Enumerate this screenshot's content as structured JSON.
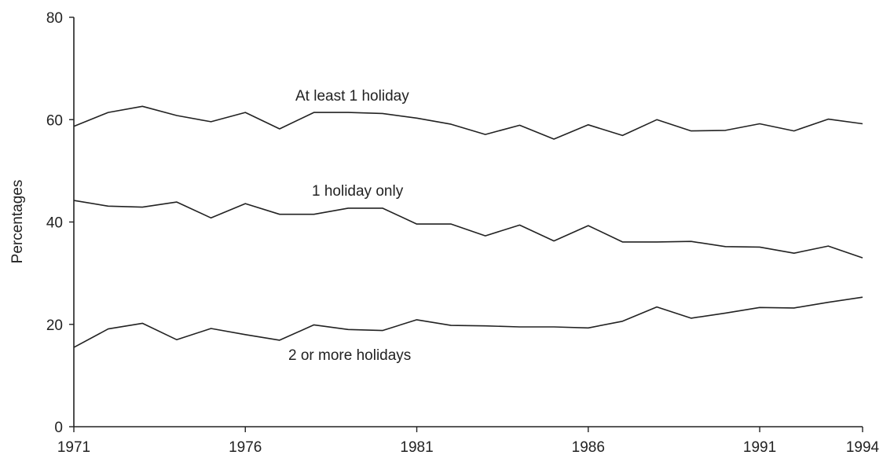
{
  "chart_data": {
    "type": "line",
    "title": "",
    "xlabel": "",
    "ylabel": "Percentages",
    "xlim": [
      1971,
      1994
    ],
    "ylim": [
      0,
      80
    ],
    "grid": false,
    "legend": "none",
    "x_ticks": [
      1971,
      1976,
      1981,
      1986,
      1991,
      1994
    ],
    "x_tick_labels": [
      "1971",
      "1976",
      "1981",
      "1986",
      "1991",
      "1994"
    ],
    "y_ticks": [
      0,
      20,
      40,
      60,
      80
    ],
    "y_tick_labels": [
      "0",
      "20",
      "40",
      "60",
      "80"
    ],
    "x": [
      1971,
      1972,
      1973,
      1974,
      1975,
      1976,
      1977,
      1978,
      1979,
      1980,
      1981,
      1982,
      1983,
      1984,
      1985,
      1986,
      1987,
      1988,
      1989,
      1990,
      1991,
      1992,
      1993,
      1994
    ],
    "series": [
      {
        "name": "At least 1 holiday",
        "values": [
          58.7,
          61.4,
          62.6,
          60.8,
          59.6,
          61.4,
          58.2,
          61.4,
          61.4,
          61.2,
          60.3,
          59.1,
          57.1,
          58.9,
          56.2,
          59.0,
          56.9,
          60.0,
          57.8,
          57.9,
          59.2,
          57.8,
          60.1,
          59.2
        ]
      },
      {
        "name": "1 holiday only",
        "values": [
          44.2,
          43.1,
          42.9,
          43.9,
          40.8,
          43.6,
          41.5,
          41.5,
          42.7,
          42.7,
          39.6,
          39.6,
          37.3,
          39.4,
          36.3,
          39.3,
          36.1,
          36.1,
          36.2,
          35.2,
          35.1,
          33.9,
          35.3,
          33.0
        ]
      },
      {
        "name": "2 or more holidays",
        "values": [
          15.5,
          19.1,
          20.2,
          17.0,
          19.2,
          18.0,
          16.9,
          19.9,
          19.0,
          18.8,
          20.9,
          19.8,
          19.7,
          19.5,
          19.5,
          19.3,
          20.6,
          23.4,
          21.2,
          22.2,
          23.3,
          23.2,
          24.3,
          25.3
        ]
      }
    ],
    "annotations": [
      "At least 1 holiday",
      "1 holiday only",
      "2 or more holidays"
    ]
  }
}
